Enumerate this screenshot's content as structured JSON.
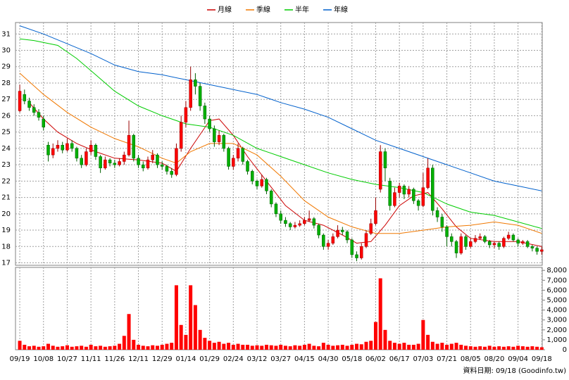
{
  "chart_data": {
    "type": "candlestick",
    "footer": "資料日期: 09/18 (Goodinfo.tw)",
    "legend": "top",
    "grid": true,
    "up_color": "#ff0000",
    "down_color": "#00b000",
    "xlim": [
      -0.9,
      110.1
    ],
    "xticks": [
      {
        "value": 0,
        "label": "09/19"
      },
      {
        "value": 5,
        "label": "10/08"
      },
      {
        "value": 10,
        "label": "10/27"
      },
      {
        "value": 15,
        "label": "11/11"
      },
      {
        "value": 20,
        "label": "11/26"
      },
      {
        "value": 25,
        "label": "12/11"
      },
      {
        "value": 30,
        "label": "12/29"
      },
      {
        "value": 35,
        "label": "01/14"
      },
      {
        "value": 40,
        "label": "01/29"
      },
      {
        "value": 45,
        "label": "02/24"
      },
      {
        "value": 50,
        "label": "03/12"
      },
      {
        "value": 55,
        "label": "03/27"
      },
      {
        "value": 60,
        "label": "04/15"
      },
      {
        "value": 65,
        "label": "04/30"
      },
      {
        "value": 70,
        "label": "05/18"
      },
      {
        "value": 75,
        "label": "06/02"
      },
      {
        "value": 80,
        "label": "06/17"
      },
      {
        "value": 85,
        "label": "07/03"
      },
      {
        "value": 90,
        "label": "07/21"
      },
      {
        "value": 95,
        "label": "08/05"
      },
      {
        "value": 100,
        "label": "08/20"
      },
      {
        "value": 105,
        "label": "09/04"
      },
      {
        "value": 110,
        "label": "09/18"
      }
    ],
    "ylim": [
      16.85,
      31.7
    ],
    "yticks": [
      17,
      18,
      19,
      20,
      21,
      22,
      23,
      24,
      25,
      26,
      27,
      28,
      29,
      30,
      31
    ],
    "ohlc": [
      [
        26.3,
        27.9,
        26.2,
        27.5
      ],
      [
        27.3,
        27.6,
        26.7,
        26.9
      ],
      [
        26.9,
        27.1,
        26.3,
        26.5
      ],
      [
        26.5,
        26.7,
        26.0,
        26.2
      ],
      [
        26.2,
        26.4,
        25.7,
        25.9
      ],
      [
        25.8,
        26.0,
        25.1,
        25.3
      ],
      [
        24.2,
        24.4,
        23.2,
        23.6
      ],
      [
        23.6,
        24.3,
        23.4,
        24.0
      ],
      [
        24.0,
        24.5,
        23.8,
        24.2
      ],
      [
        24.2,
        24.4,
        23.7,
        23.9
      ],
      [
        23.9,
        24.6,
        23.8,
        24.3
      ],
      [
        24.3,
        24.5,
        23.8,
        24.0
      ],
      [
        24.0,
        24.1,
        23.2,
        23.4
      ],
      [
        23.4,
        23.6,
        22.8,
        23.0
      ],
      [
        23.0,
        24.0,
        22.9,
        23.8
      ],
      [
        23.8,
        24.5,
        23.6,
        24.2
      ],
      [
        24.2,
        24.3,
        23.3,
        23.5
      ],
      [
        23.5,
        23.6,
        22.5,
        22.8
      ],
      [
        22.8,
        23.5,
        22.7,
        23.3
      ],
      [
        23.3,
        23.4,
        22.9,
        23.1
      ],
      [
        23.1,
        23.3,
        22.8,
        23.0
      ],
      [
        23.0,
        23.4,
        22.9,
        23.2
      ],
      [
        23.2,
        23.8,
        23.0,
        23.6
      ],
      [
        23.6,
        25.7,
        23.5,
        24.8
      ],
      [
        24.8,
        24.9,
        23.2,
        23.4
      ],
      [
        23.4,
        23.6,
        22.8,
        23.0
      ],
      [
        23.0,
        23.2,
        22.6,
        22.8
      ],
      [
        22.8,
        23.5,
        22.7,
        23.3
      ],
      [
        23.3,
        23.9,
        23.1,
        23.6
      ],
      [
        23.6,
        23.7,
        22.8,
        23.0
      ],
      [
        23.0,
        23.2,
        22.7,
        22.9
      ],
      [
        22.9,
        23.0,
        22.4,
        22.6
      ],
      [
        22.6,
        22.8,
        22.2,
        22.4
      ],
      [
        22.4,
        24.3,
        22.3,
        24.0
      ],
      [
        24.0,
        26.0,
        23.8,
        25.6
      ],
      [
        25.6,
        26.9,
        25.3,
        26.5
      ],
      [
        26.5,
        29.0,
        26.3,
        28.2
      ],
      [
        28.2,
        28.6,
        27.3,
        27.8
      ],
      [
        27.8,
        28.0,
        26.3,
        26.6
      ],
      [
        26.6,
        26.8,
        25.5,
        25.8
      ],
      [
        25.8,
        26.0,
        25.0,
        25.2
      ],
      [
        25.2,
        25.4,
        24.1,
        24.4
      ],
      [
        24.4,
        25.1,
        24.2,
        24.8
      ],
      [
        24.8,
        24.9,
        23.8,
        24.0
      ],
      [
        24.0,
        24.1,
        22.7,
        22.9
      ],
      [
        22.9,
        23.6,
        22.7,
        23.4
      ],
      [
        23.4,
        24.3,
        23.2,
        24.0
      ],
      [
        24.0,
        24.1,
        23.0,
        23.2
      ],
      [
        23.2,
        23.3,
        22.4,
        22.6
      ],
      [
        22.6,
        22.7,
        21.8,
        22.0
      ],
      [
        22.0,
        22.1,
        21.5,
        21.7
      ],
      [
        21.7,
        22.4,
        21.6,
        22.1
      ],
      [
        22.1,
        22.2,
        21.2,
        21.4
      ],
      [
        21.4,
        21.5,
        20.4,
        20.6
      ],
      [
        20.6,
        20.7,
        19.8,
        20.0
      ],
      [
        20.0,
        20.2,
        19.4,
        19.6
      ],
      [
        19.6,
        19.8,
        19.2,
        19.4
      ],
      [
        19.4,
        19.5,
        19.0,
        19.2
      ],
      [
        19.2,
        19.5,
        19.1,
        19.3
      ],
      [
        19.3,
        19.6,
        19.2,
        19.4
      ],
      [
        19.4,
        19.8,
        19.3,
        19.6
      ],
      [
        19.6,
        20.2,
        19.5,
        19.7
      ],
      [
        19.7,
        19.8,
        19.1,
        19.3
      ],
      [
        19.3,
        19.4,
        18.5,
        18.7
      ],
      [
        18.7,
        18.8,
        17.8,
        18.0
      ],
      [
        18.0,
        18.4,
        17.8,
        18.2
      ],
      [
        18.2,
        18.8,
        18.1,
        18.6
      ],
      [
        18.6,
        19.3,
        18.5,
        19.0
      ],
      [
        19.0,
        19.2,
        18.7,
        18.9
      ],
      [
        18.9,
        19.0,
        18.2,
        18.4
      ],
      [
        18.4,
        18.5,
        17.3,
        17.5
      ],
      [
        17.5,
        17.7,
        17.1,
        17.3
      ],
      [
        17.3,
        18.2,
        17.2,
        18.0
      ],
      [
        18.0,
        19.0,
        17.9,
        18.8
      ],
      [
        18.8,
        19.7,
        18.7,
        19.4
      ],
      [
        19.4,
        21.0,
        19.3,
        20.2
      ],
      [
        21.5,
        24.2,
        21.3,
        23.8
      ],
      [
        23.8,
        24.0,
        22.0,
        22.8
      ],
      [
        22.0,
        22.2,
        20.2,
        20.5
      ],
      [
        20.5,
        21.6,
        20.4,
        21.3
      ],
      [
        21.3,
        21.9,
        21.0,
        21.7
      ],
      [
        21.7,
        21.8,
        20.9,
        21.2
      ],
      [
        21.2,
        21.7,
        21.0,
        21.5
      ],
      [
        21.5,
        21.6,
        20.6,
        20.8
      ],
      [
        20.8,
        20.9,
        20.2,
        20.5
      ],
      [
        20.5,
        22.5,
        20.4,
        21.6
      ],
      [
        21.6,
        23.4,
        21.5,
        22.8
      ],
      [
        22.8,
        23.0,
        19.9,
        20.2
      ],
      [
        20.2,
        20.4,
        19.5,
        19.8
      ],
      [
        19.8,
        20.0,
        18.9,
        19.2
      ],
      [
        19.2,
        19.3,
        18.0,
        18.6
      ],
      [
        18.6,
        18.8,
        18.0,
        18.3
      ],
      [
        18.3,
        18.4,
        17.3,
        17.6
      ],
      [
        17.6,
        18.8,
        17.5,
        18.6
      ],
      [
        18.6,
        18.7,
        17.8,
        18.0
      ],
      [
        18.0,
        18.5,
        17.9,
        18.3
      ],
      [
        18.3,
        18.7,
        18.2,
        18.5
      ],
      [
        18.5,
        18.8,
        18.4,
        18.6
      ],
      [
        18.6,
        18.7,
        18.2,
        18.3
      ],
      [
        18.3,
        18.4,
        17.9,
        18.1
      ],
      [
        18.1,
        18.3,
        17.9,
        18.2
      ],
      [
        18.2,
        18.3,
        17.8,
        18.0
      ],
      [
        18.0,
        18.6,
        17.9,
        18.5
      ],
      [
        18.5,
        18.9,
        18.4,
        18.7
      ],
      [
        18.7,
        18.8,
        18.3,
        18.4
      ],
      [
        18.4,
        18.5,
        18.0,
        18.2
      ],
      [
        18.2,
        18.4,
        18.1,
        18.3
      ],
      [
        18.3,
        18.4,
        17.9,
        18.0
      ],
      [
        18.0,
        18.1,
        17.7,
        17.9
      ],
      [
        17.9,
        18.0,
        17.5,
        17.7
      ],
      [
        17.7,
        18.0,
        17.5,
        17.8
      ]
    ],
    "series": [
      {
        "name": "月線",
        "color": "#cc0000",
        "x": [
          2,
          5,
          8,
          12,
          16,
          20,
          25,
          30,
          33,
          36,
          40,
          42,
          45,
          48,
          52,
          56,
          60,
          64,
          68,
          71,
          74,
          77,
          80,
          83,
          86,
          89,
          92,
          95,
          100,
          105,
          110
        ],
        "values": [
          26.8,
          25.8,
          25.0,
          24.3,
          23.8,
          23.4,
          23.3,
          23.1,
          22.6,
          24.0,
          25.7,
          25.8,
          24.8,
          23.5,
          22.0,
          20.5,
          19.6,
          19.3,
          18.7,
          18.2,
          18.3,
          19.3,
          20.5,
          21.1,
          21.3,
          20.3,
          19.2,
          18.5,
          18.3,
          18.3,
          18.0
        ]
      },
      {
        "name": "季線",
        "color": "#f07800",
        "x": [
          0,
          5,
          10,
          15,
          20,
          25,
          30,
          33,
          36,
          40,
          45,
          50,
          55,
          60,
          65,
          70,
          75,
          80,
          85,
          90,
          95,
          100,
          105,
          110
        ],
        "values": [
          28.6,
          27.3,
          26.2,
          25.3,
          24.6,
          24.1,
          23.4,
          23.1,
          23.8,
          24.3,
          24.3,
          23.6,
          22.3,
          20.8,
          19.8,
          19.2,
          18.8,
          18.8,
          19.0,
          19.2,
          19.3,
          19.5,
          19.3,
          18.8
        ]
      },
      {
        "name": "半年",
        "color": "#00cc00",
        "x": [
          0,
          3,
          8,
          12,
          16,
          20,
          25,
          30,
          35,
          40,
          45,
          50,
          55,
          60,
          65,
          70,
          75,
          80,
          85,
          90,
          95,
          100,
          105,
          110
        ],
        "values": [
          30.7,
          30.6,
          30.3,
          29.5,
          28.5,
          27.5,
          26.6,
          26.0,
          25.5,
          25.3,
          24.8,
          24.0,
          23.5,
          23.0,
          22.5,
          22.1,
          21.8,
          21.6,
          21.3,
          20.6,
          20.1,
          19.9,
          19.5,
          19.1
        ]
      },
      {
        "name": "年線",
        "color": "#0060cc",
        "x": [
          0,
          5,
          10,
          15,
          20,
          25,
          30,
          35,
          40,
          45,
          50,
          55,
          60,
          65,
          70,
          75,
          80,
          85,
          90,
          95,
          100,
          105,
          110
        ],
        "values": [
          31.5,
          31.0,
          30.4,
          29.8,
          29.1,
          28.7,
          28.5,
          28.2,
          27.9,
          27.6,
          27.3,
          26.8,
          26.4,
          25.9,
          25.2,
          24.5,
          24.0,
          23.5,
          23.0,
          22.5,
          22.0,
          21.7,
          21.4
        ]
      }
    ],
    "volume": {
      "color": "#ff0000",
      "ylim": [
        0,
        8300
      ],
      "yticks": [
        0,
        {
          "value": 1000,
          "label": "1,000"
        },
        {
          "value": 2000,
          "label": "2,000"
        },
        {
          "value": 3000,
          "label": "3,000"
        },
        {
          "value": 4000,
          "label": "4,000"
        },
        {
          "value": 5000,
          "label": "5,000"
        },
        {
          "value": 6000,
          "label": "6,000"
        },
        {
          "value": 7000,
          "label": "7,000"
        },
        {
          "value": 8000,
          "label": "8,000"
        }
      ],
      "values": [
        900,
        500,
        350,
        400,
        300,
        350,
        600,
        400,
        300,
        350,
        450,
        300,
        350,
        400,
        300,
        500,
        350,
        400,
        300,
        350,
        400,
        600,
        1400,
        3600,
        1000,
        500,
        400,
        350,
        450,
        400,
        500,
        600,
        700,
        6500,
        2500,
        1500,
        6500,
        4500,
        2000,
        1200,
        900,
        700,
        800,
        600,
        700,
        500,
        600,
        500,
        500,
        400,
        450,
        400,
        500,
        450,
        400,
        500,
        400,
        350,
        450,
        400,
        500,
        600,
        400,
        350,
        700,
        500,
        400,
        450,
        500,
        400,
        500,
        600,
        550,
        800,
        900,
        2800,
        7200,
        2000,
        900,
        700,
        600,
        700,
        500,
        500,
        600,
        3000,
        1500,
        800,
        600,
        700,
        500,
        600,
        700,
        500,
        400,
        350,
        300,
        350,
        300,
        400,
        300,
        350,
        300,
        350,
        300,
        400,
        350,
        300,
        350,
        300,
        250
      ]
    }
  }
}
